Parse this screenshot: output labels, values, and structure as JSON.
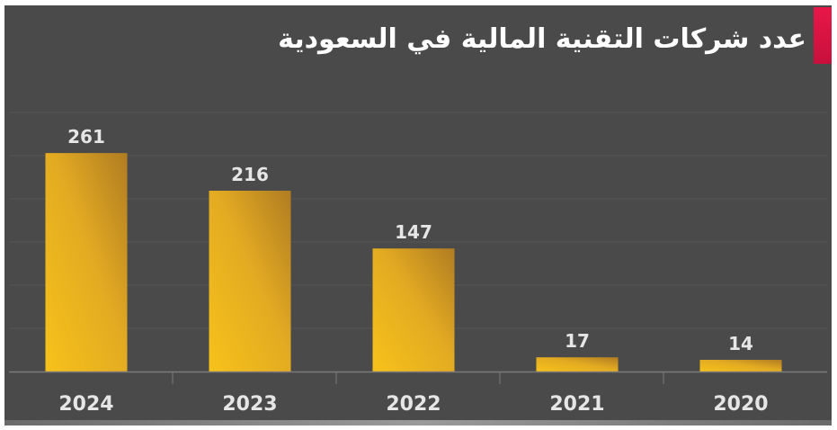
{
  "chart_data": {
    "type": "bar",
    "title": "عدد شركات التقنية المالية في السعودية",
    "categories": [
      "2024",
      "2023",
      "2022",
      "2021",
      "2020"
    ],
    "values": [
      261,
      216,
      147,
      17,
      14
    ],
    "ylim": [
      0,
      300
    ],
    "grid": true,
    "colors": {
      "background": "#4a4a4a",
      "bar_light": "#f7c21a",
      "bar_dark": "#b07c22",
      "accent": "#e8174a",
      "gridline": "#555555",
      "text": "#e6e6e6"
    }
  }
}
